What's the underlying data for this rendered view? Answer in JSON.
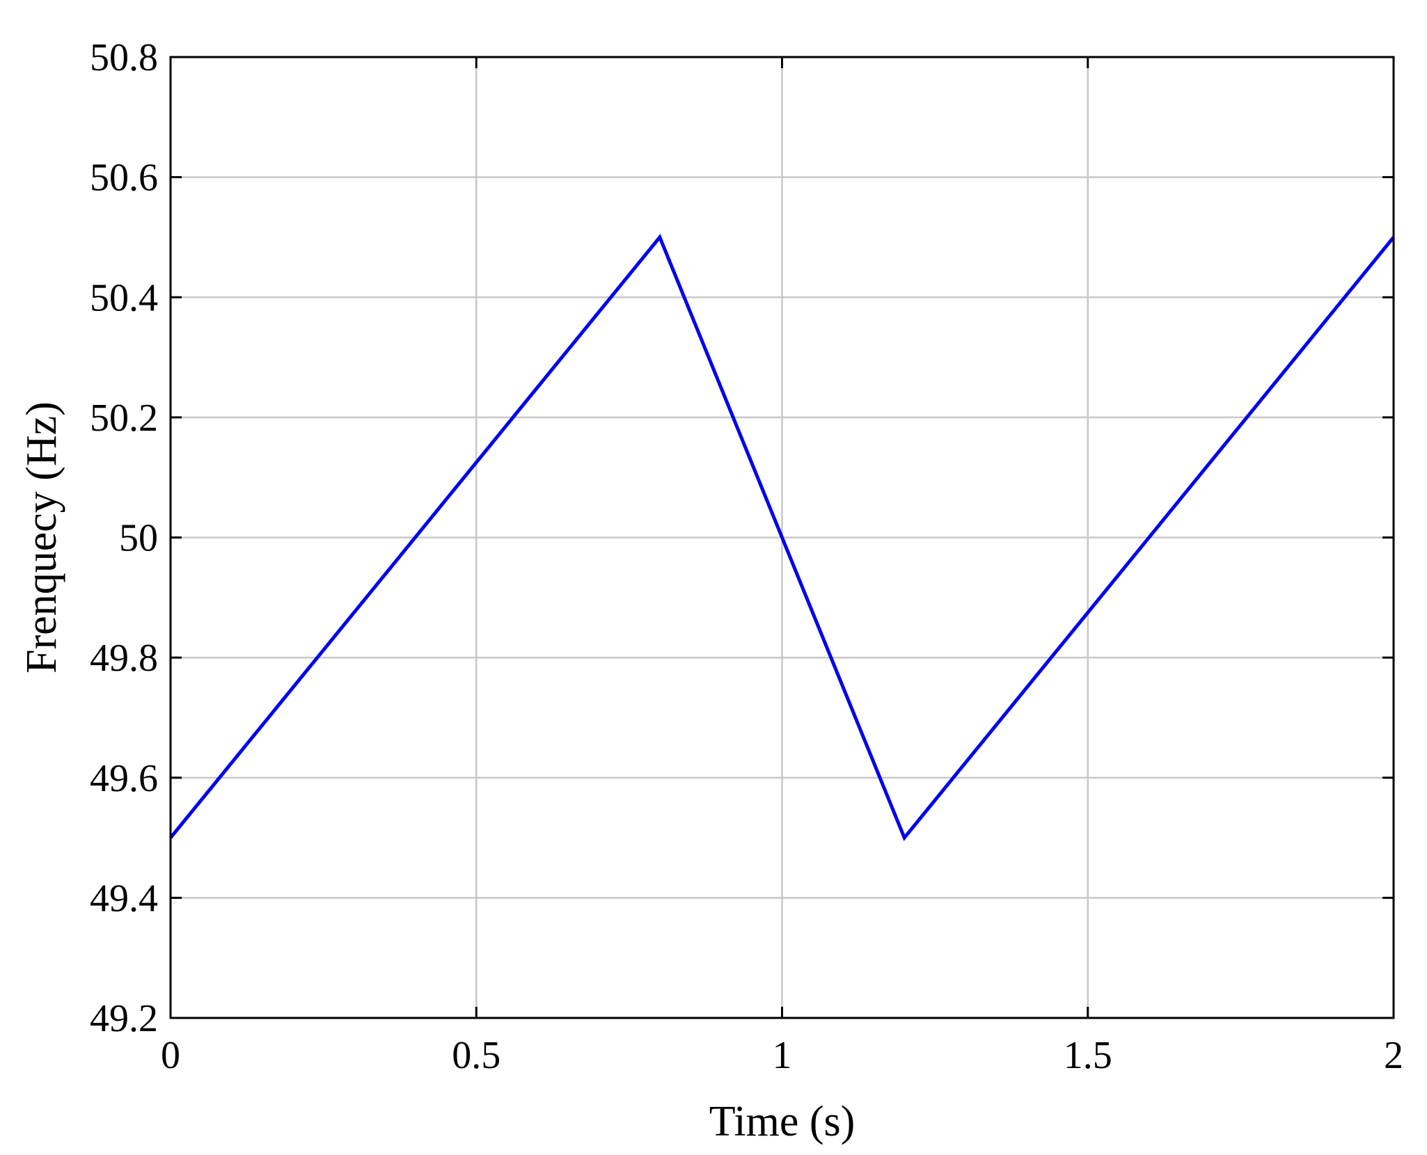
{
  "chart_data": {
    "type": "line",
    "title": "",
    "xlabel": "Time (s)",
    "ylabel": "Frenquecy (Hz)",
    "xlim": [
      0,
      2
    ],
    "ylim": [
      49.2,
      50.8
    ],
    "x_ticks": [
      0,
      0.5,
      1,
      1.5,
      2
    ],
    "x_tick_labels": [
      "0",
      "0.5",
      "1",
      "1.5",
      "2"
    ],
    "y_ticks": [
      49.2,
      49.4,
      49.6,
      49.8,
      50.0,
      50.2,
      50.4,
      50.6,
      50.8
    ],
    "y_tick_labels": [
      "49.2",
      "49.4",
      "49.6",
      "49.8",
      "50",
      "50.2",
      "50.4",
      "50.6",
      "50.8"
    ],
    "grid": true,
    "legend": "none",
    "series": [
      {
        "color": "#0000ee",
        "x": [
          0,
          0.8,
          1.2,
          2.0
        ],
        "y": [
          49.5,
          50.5,
          49.5,
          50.5
        ]
      }
    ]
  }
}
